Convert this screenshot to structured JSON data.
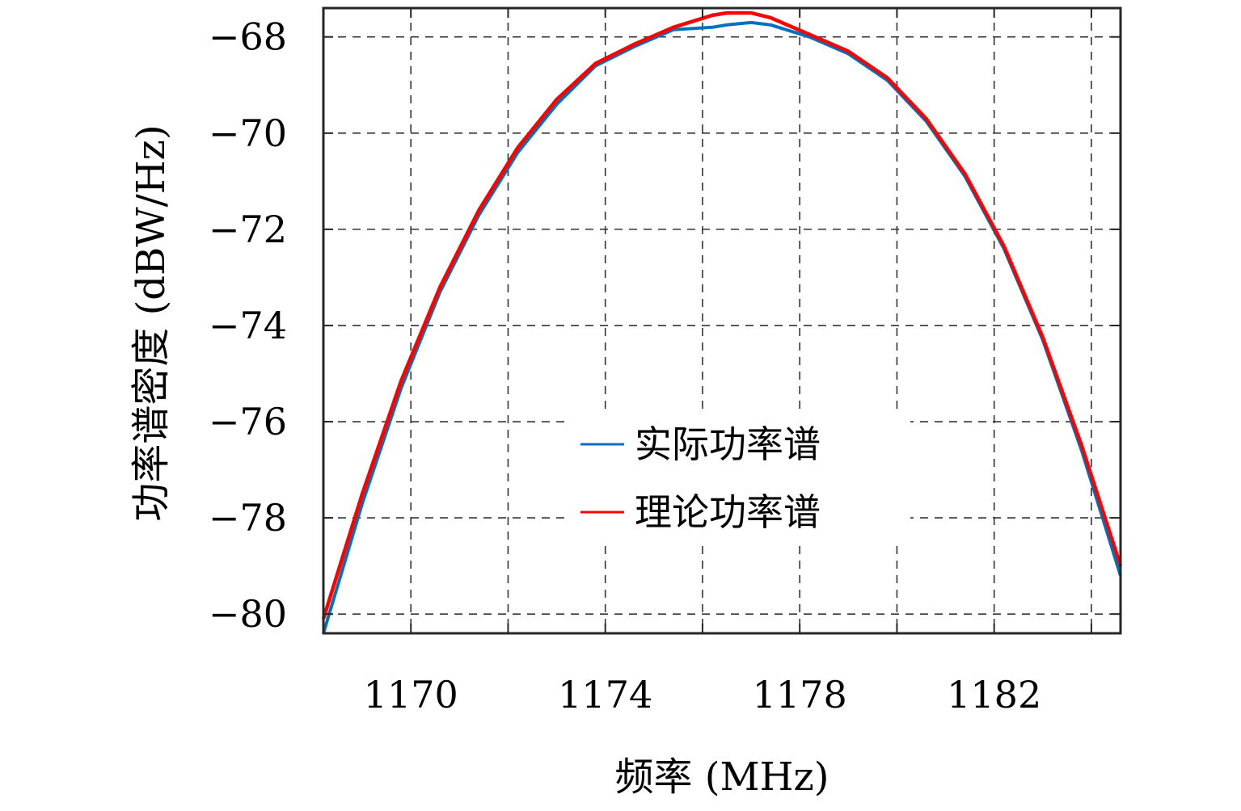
{
  "chart_data": {
    "type": "line",
    "title": "",
    "xlabel": "频率 (MHz)",
    "ylabel": "功率谱密度 (dBW/Hz)",
    "xlim": [
      1168.2,
      1184.6
    ],
    "ylim": [
      -80.4,
      -67.4
    ],
    "grid": true,
    "grid_style": "dashed",
    "legend_placement": "bottom-center",
    "x_ticks": [
      1170,
      1174,
      1178,
      1182
    ],
    "x_tick_labels": [
      "1170",
      "1174",
      "1178",
      "1182"
    ],
    "y_ticks": [
      -68,
      -70,
      -72,
      -74,
      -76,
      -78,
      -80
    ],
    "y_tick_labels": [
      "−68",
      "−70",
      "−72",
      "−74",
      "−76",
      "−78",
      "−80"
    ],
    "series": [
      {
        "name": "实际功率谱",
        "color": "#0072BD",
        "x": [
          1168.2,
          1169.0,
          1169.8,
          1170.6,
          1171.4,
          1172.2,
          1173.0,
          1173.8,
          1174.6,
          1175.4,
          1176.2,
          1176.5,
          1177.0,
          1177.4,
          1178.2,
          1179.0,
          1179.8,
          1180.6,
          1181.4,
          1182.2,
          1183.0,
          1183.8,
          1184.6
        ],
        "y": [
          -80.4,
          -77.7,
          -75.3,
          -73.3,
          -71.7,
          -70.4,
          -69.4,
          -68.6,
          -68.2,
          -67.85,
          -67.8,
          -67.75,
          -67.7,
          -67.75,
          -68.0,
          -68.35,
          -68.9,
          -69.75,
          -70.9,
          -72.4,
          -74.3,
          -76.6,
          -79.2
        ]
      },
      {
        "name": "理论功率谱",
        "color": "#FF0000",
        "x": [
          1168.2,
          1169.0,
          1169.8,
          1170.6,
          1171.4,
          1172.2,
          1173.0,
          1173.8,
          1174.6,
          1175.4,
          1176.2,
          1176.5,
          1177.0,
          1177.4,
          1178.2,
          1179.0,
          1179.8,
          1180.6,
          1181.4,
          1182.2,
          1183.0,
          1183.8,
          1184.6
        ],
        "y": [
          -80.1,
          -77.5,
          -75.15,
          -73.2,
          -71.6,
          -70.3,
          -69.3,
          -68.55,
          -68.15,
          -67.8,
          -67.55,
          -67.5,
          -67.5,
          -67.6,
          -67.95,
          -68.3,
          -68.85,
          -69.7,
          -70.85,
          -72.35,
          -74.25,
          -76.5,
          -79.0
        ]
      }
    ]
  }
}
